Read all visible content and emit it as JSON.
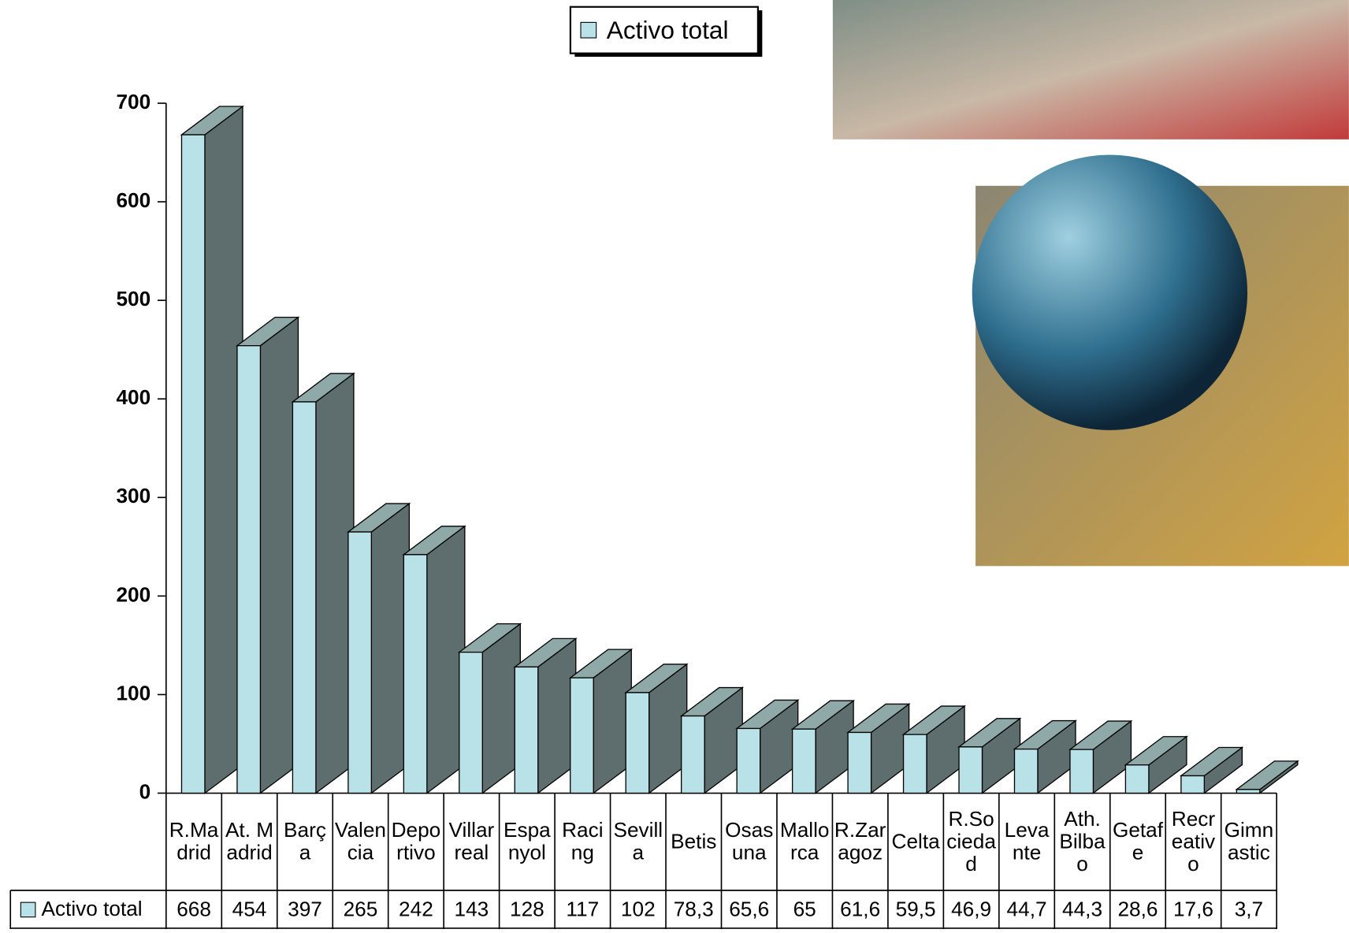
{
  "chart_data": {
    "type": "bar3d",
    "categories": [
      "R.Madrid",
      "At. Madrid",
      "Barça",
      "Valencia",
      "Deportivo",
      "Villarreal",
      "Espanyol",
      "Racing",
      "Sevilla",
      "Betis",
      "Osasuna",
      "Mallorca",
      "R.Zaragoz",
      "Celta",
      "R.Sociedad",
      "Levante",
      "Ath. Bilbao",
      "Getafe",
      "Recreativo",
      "Gimnastic"
    ],
    "series": [
      {
        "name": "Activo total",
        "color": "#b8e2e8",
        "values": [
          668,
          454,
          397,
          265,
          242,
          143,
          128,
          117,
          102,
          78.3,
          65.6,
          65,
          61.6,
          59.5,
          46.9,
          44.7,
          44.3,
          28.6,
          17.6,
          3.7
        ],
        "value_labels": [
          "668",
          "454",
          "397",
          "265",
          "242",
          "143",
          "128",
          "117",
          "102",
          "78,3",
          "65,6",
          "65",
          "61,6",
          "59,5",
          "46,9",
          "44,7",
          "44,3",
          "28,6",
          "17,6",
          "3,7"
        ]
      }
    ],
    "ylim": [
      0,
      700
    ],
    "yticks": [
      0,
      100,
      200,
      300,
      400,
      500,
      600,
      700
    ],
    "legend": "top",
    "data_table": true
  }
}
